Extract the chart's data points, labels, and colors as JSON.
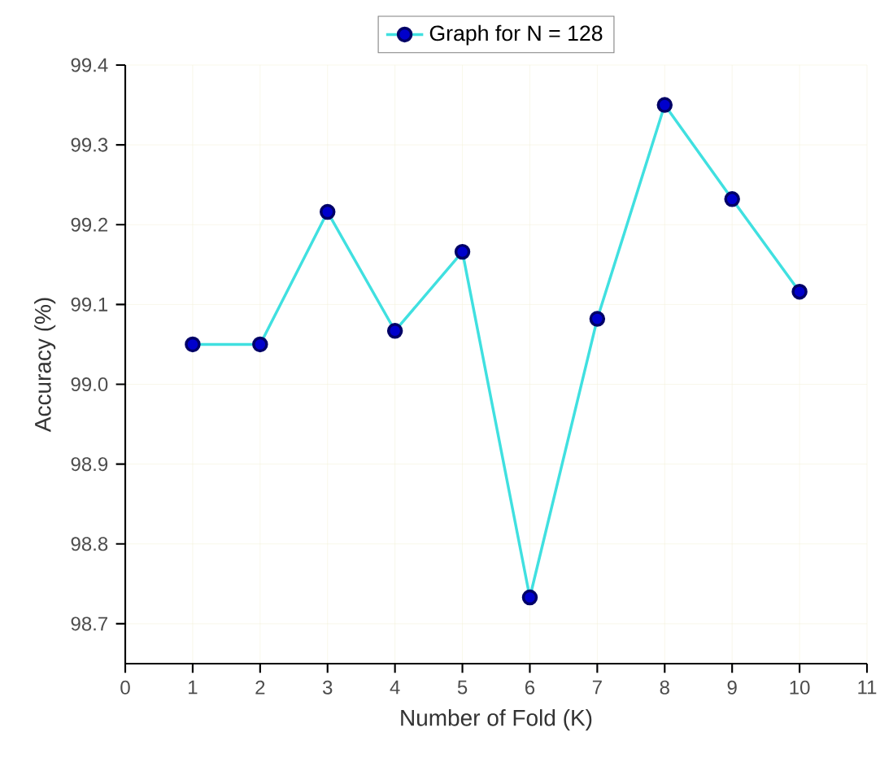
{
  "chart_data": {
    "type": "line",
    "xlabel": "Number of Fold (K)",
    "ylabel": "Accuracy (%)",
    "x": [
      1,
      2,
      3,
      4,
      5,
      6,
      7,
      8,
      9,
      10
    ],
    "series": [
      {
        "name": "Graph for N = 128",
        "color": "#40e0e0",
        "values": [
          99.05,
          99.05,
          99.216,
          99.067,
          99.166,
          98.733,
          99.082,
          99.35,
          99.232,
          99.116
        ]
      }
    ],
    "xlim": [
      0,
      11
    ],
    "ylim": [
      98.65,
      99.4
    ],
    "xticks": [
      0,
      1,
      2,
      3,
      4,
      5,
      6,
      7,
      8,
      9,
      10,
      11
    ],
    "yticks": [
      98.7,
      98.8,
      98.9,
      {
        "value": 99,
        "label": "99.0"
      },
      99.1,
      99.2,
      99.3,
      99.4
    ],
    "grid": true,
    "legend": "top",
    "marker": "circle",
    "line_style": "solid"
  }
}
